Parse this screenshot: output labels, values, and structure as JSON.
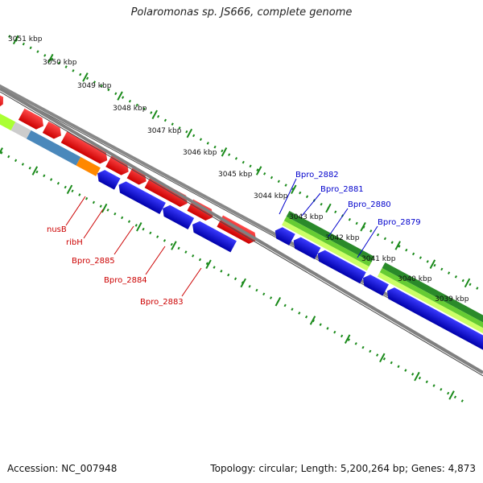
{
  "title": "Polaromonas sp. JS666, complete genome",
  "footer": {
    "accession": "Accession: NC_007948",
    "summary": "Topology: circular; Length: 5,200,264 bp; Genes: 4,873"
  },
  "kbp_ticks": [
    "3051 kbp",
    "3050 kbp",
    "3049 kbp",
    "3048 kbp",
    "3047 kbp",
    "3046 kbp",
    "3045 kbp",
    "3044 kbp",
    "3043 kbp",
    "3042 kbp",
    "3041 kbp",
    "3040 kbp",
    "3039 kbp"
  ],
  "gene_labels_left": [
    "nusB",
    "ribH",
    "Bpro_2885",
    "Bpro_2884",
    "Bpro_2883"
  ],
  "gene_labels_right": [
    "Bpro_2882",
    "Bpro_2881",
    "Bpro_2880",
    "Bpro_2879"
  ],
  "colors": {
    "forward_cds": "#ff0000",
    "reverse_cds": "#0000ee",
    "gc_dark": "#2a8a2a",
    "gc_light": "#aaff33",
    "backbone": "#888888",
    "ticks": "#1a8a1a",
    "label_red": "#cc0000",
    "label_blue": "#0000cc"
  }
}
